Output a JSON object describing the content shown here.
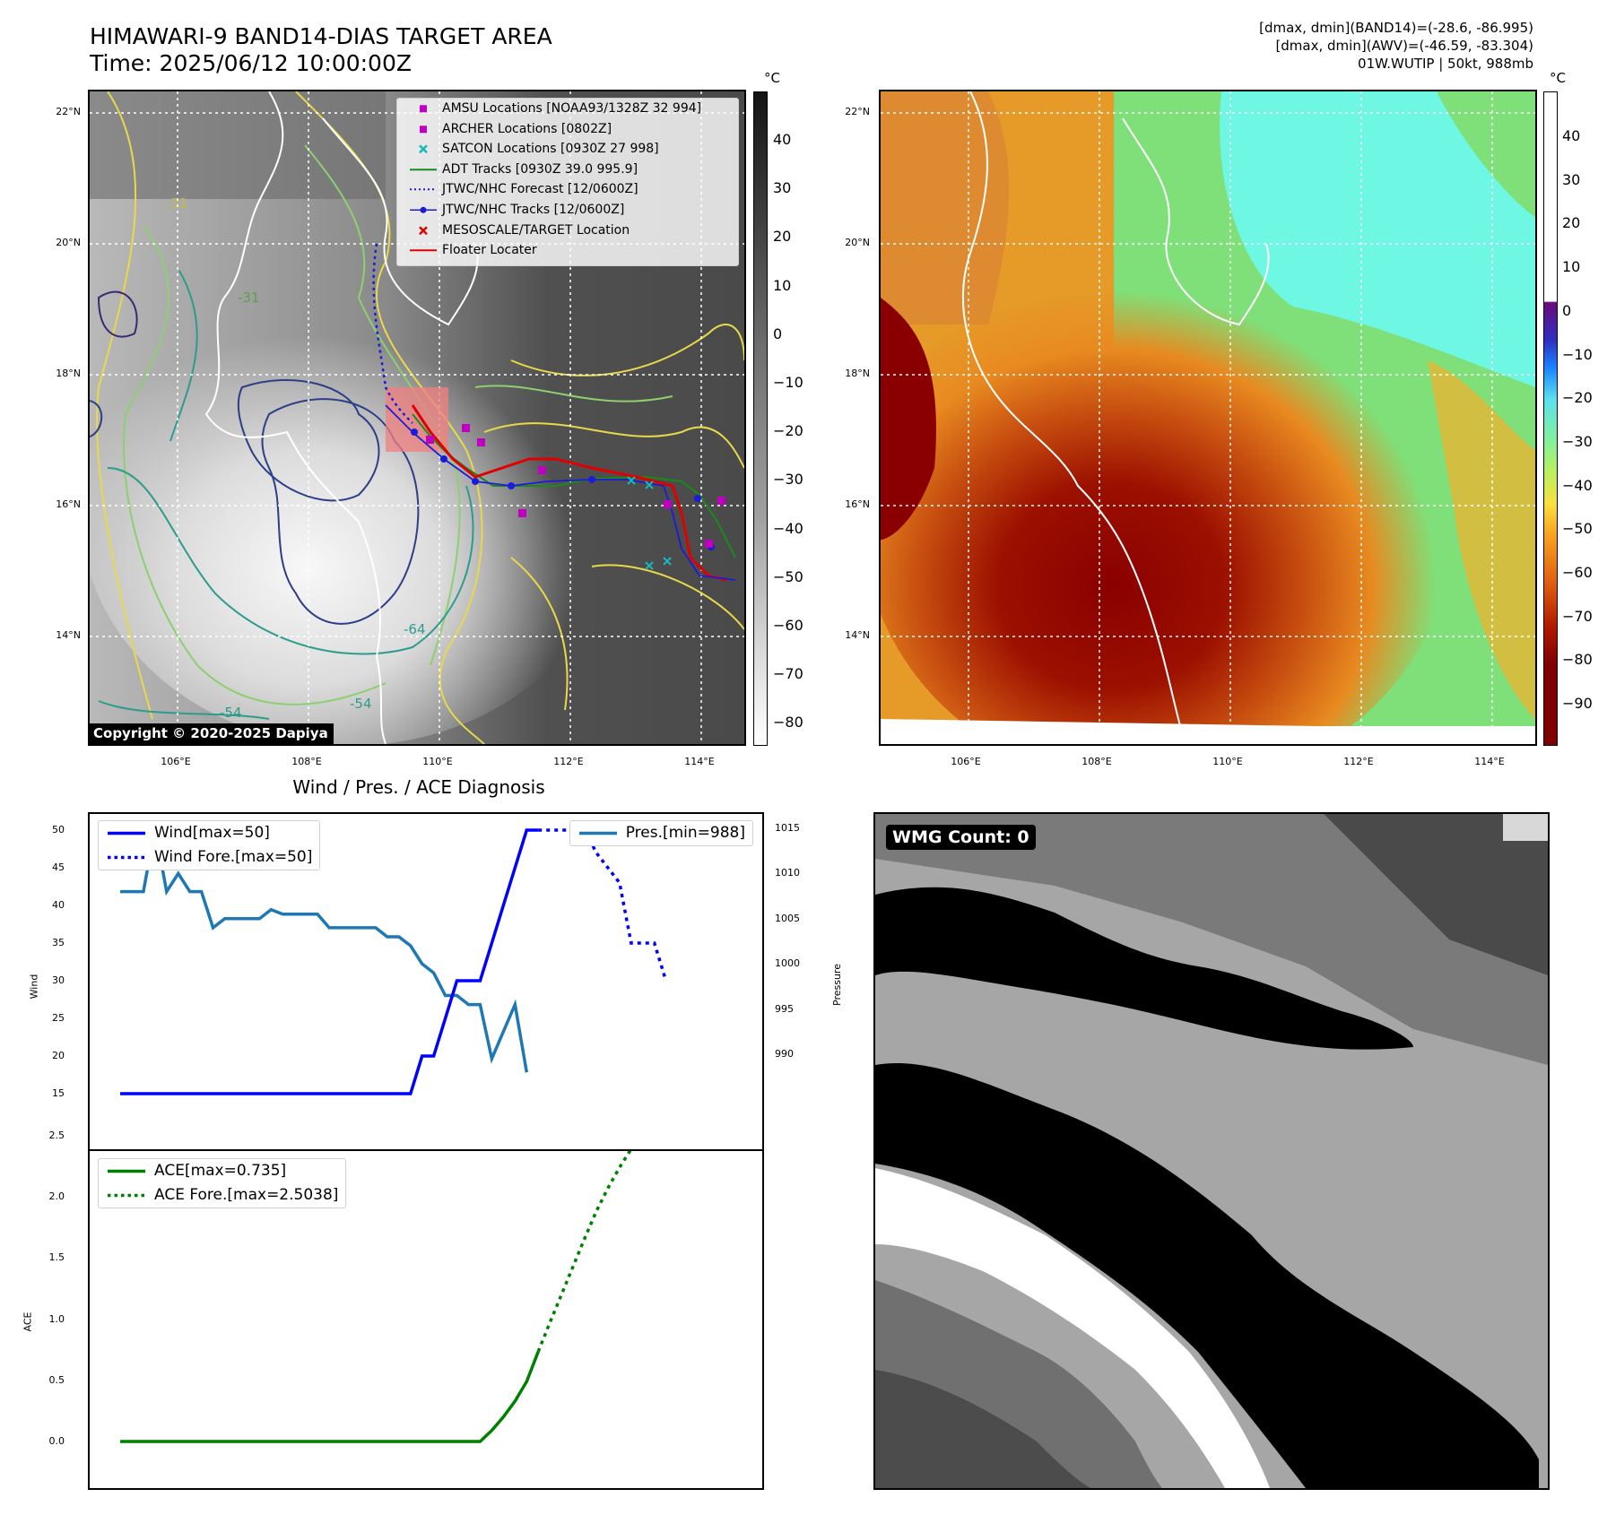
{
  "header": {
    "title_line1": "HIMAWARI-9 BAND14-DIAS TARGET AREA",
    "title_line2": "Time: 2025/06/12 10:00:00Z",
    "info_line1": "[dmax, dmin](BAND14)=(-28.6, -86.995)",
    "info_line2": "[dmax, dmin](AWV)=(-46.59, -83.304)",
    "info_line3": "01W.WUTIP | 50kt, 988mb"
  },
  "map": {
    "lat_ticks": [
      "22°N",
      "20°N",
      "18°N",
      "16°N",
      "14°N"
    ],
    "lon_ticks": [
      "106°E",
      "108°E",
      "110°E",
      "112°E",
      "114°E"
    ],
    "contour_labels": [
      "-31",
      "-31",
      "-64",
      "-54",
      "-54"
    ],
    "copyright": "Copyright © 2020-2025 Dapiya",
    "colorbar_unit": "°C"
  },
  "colorbar_ir": {
    "ticks": [
      "40",
      "30",
      "20",
      "10",
      "0",
      "−10",
      "−20",
      "−30",
      "−40",
      "−50",
      "−60",
      "−70",
      "−80"
    ]
  },
  "colorbar_awv": {
    "ticks": [
      "40",
      "30",
      "20",
      "10",
      "0",
      "−10",
      "−20",
      "−30",
      "−40",
      "−50",
      "−60",
      "−70",
      "−80",
      "−90"
    ]
  },
  "legend_ir": {
    "items": [
      {
        "label": "AMSU Locations [NOAA93/1328Z 32 994]",
        "color": "#c000c0",
        "marker": "square"
      },
      {
        "label": "ARCHER Locations [0802Z]",
        "color": "#c000c0",
        "marker": "square"
      },
      {
        "label": "SATCON Locations [0930Z 27 998]",
        "color": "#18b8b8",
        "marker": "x"
      },
      {
        "label": "ADT Tracks [0930Z 39.0 995.9]",
        "color": "#1a8a1a",
        "marker": "line"
      },
      {
        "label": "JTWC/NHC Forecast [12/0600Z]",
        "color": "#1c1cd8",
        "marker": "dotted"
      },
      {
        "label": "JTWC/NHC Tracks [12/0600Z]",
        "color": "#1c1cd8",
        "marker": "line-dot"
      },
      {
        "label": "MESOSCALE/TARGET Location",
        "color": "#e00000",
        "marker": "x"
      },
      {
        "label": "Floater Locater",
        "color": "#e00000",
        "marker": "line"
      }
    ]
  },
  "diagnosis": {
    "title": "Wind / Pres. / ACE Diagnosis",
    "wind_ylabel": "Wind",
    "pressure_ylabel": "Pressure",
    "ace_ylabel": "ACE",
    "legend_wind": "Wind[max=50]",
    "legend_wind_fore": "Wind Fore.[max=50]",
    "legend_pres": "Pres.[min=988]",
    "legend_ace": "ACE[max=0.735]",
    "legend_ace_fore": "ACE Fore.[max=2.5038]"
  },
  "wmg": {
    "label": "WMG Count: 0"
  },
  "chart_data": [
    {
      "type": "line",
      "title": "Wind / Pres. / ACE Diagnosis",
      "ylabel": "Wind",
      "ylim": [
        14,
        51
      ],
      "x": [
        0,
        1,
        2,
        3,
        4,
        5,
        6,
        7,
        8,
        9,
        10,
        11,
        12,
        13,
        14,
        15,
        16,
        17,
        18,
        19,
        20,
        21,
        22,
        23,
        24,
        25,
        26,
        27,
        28,
        29,
        30,
        31,
        32,
        33,
        34,
        35,
        36,
        37,
        38,
        39,
        40,
        41,
        42,
        43,
        44,
        45,
        46,
        47,
        48,
        49,
        50
      ],
      "yticks": [
        "50",
        "45",
        "40",
        "35",
        "30",
        "25",
        "20",
        "15"
      ],
      "series": [
        {
          "name": "Wind[max=50]",
          "color": "#0000ff",
          "style": "solid",
          "points": [
            [
              0,
              15
            ],
            [
              25,
              15
            ],
            [
              26,
              20
            ],
            [
              27,
              20
            ],
            [
              28,
              25
            ],
            [
              29,
              30
            ],
            [
              30,
              30
            ],
            [
              31,
              30
            ],
            [
              32,
              35
            ],
            [
              33,
              40
            ],
            [
              34,
              45
            ],
            [
              35,
              50
            ],
            [
              36,
              50
            ]
          ]
        },
        {
          "name": "Wind Fore.[max=50]",
          "color": "#0000ff",
          "style": "dotted",
          "points": [
            [
              36,
              50
            ],
            [
              40,
              50
            ],
            [
              41,
              47
            ],
            [
              43,
              43
            ],
            [
              44,
              35
            ],
            [
              45,
              35
            ],
            [
              46,
              35
            ],
            [
              47,
              30
            ]
          ]
        }
      ]
    },
    {
      "type": "line",
      "ylabel": "Pressure",
      "ylim": [
        988,
        1015.5
      ],
      "yticks": [
        "1015",
        "1010",
        "1005",
        "1000",
        "995",
        "990"
      ],
      "series": [
        {
          "name": "Pres.[min=988]",
          "color": "#1f77b4",
          "style": "solid",
          "points": [
            [
              0,
              1008
            ],
            [
              1,
              1008
            ],
            [
              2,
              1008
            ],
            [
              3,
              1015
            ],
            [
              4,
              1008
            ],
            [
              5,
              1010
            ],
            [
              6,
              1008
            ],
            [
              7,
              1008
            ],
            [
              8,
              1004
            ],
            [
              9,
              1005
            ],
            [
              10,
              1005
            ],
            [
              11,
              1005
            ],
            [
              12,
              1005
            ],
            [
              13,
              1006
            ],
            [
              14,
              1005.5
            ],
            [
              15,
              1005.5
            ],
            [
              16,
              1005.5
            ],
            [
              17,
              1005.5
            ],
            [
              18,
              1004
            ],
            [
              19,
              1004
            ],
            [
              20,
              1004
            ],
            [
              21,
              1004
            ],
            [
              22,
              1004
            ],
            [
              23,
              1003
            ],
            [
              24,
              1003
            ],
            [
              25,
              1002
            ],
            [
              26,
              1000
            ],
            [
              27,
              999
            ],
            [
              28,
              996.5
            ],
            [
              29,
              996.5
            ],
            [
              30,
              995.5
            ],
            [
              31,
              995.5
            ],
            [
              32,
              989.5
            ],
            [
              33,
              992.5
            ],
            [
              34,
              995.5
            ],
            [
              35,
              988
            ]
          ]
        }
      ]
    },
    {
      "type": "line",
      "ylabel": "ACE",
      "ylim": [
        -0.05,
        2.6
      ],
      "yticks": [
        "2.5",
        "2.0",
        "1.5",
        "1.0",
        "0.5",
        "0.0"
      ],
      "series": [
        {
          "name": "ACE[max=0.735]",
          "color": "#008000",
          "style": "solid",
          "points": [
            [
              0,
              0
            ],
            [
              31,
              0
            ],
            [
              32,
              0.09
            ],
            [
              33,
              0.2
            ],
            [
              34,
              0.33
            ],
            [
              35,
              0.49
            ],
            [
              36,
              0.735
            ]
          ]
        },
        {
          "name": "ACE Fore.[max=2.5038]",
          "color": "#008000",
          "style": "dotted",
          "points": [
            [
              36,
              0.735
            ],
            [
              37,
              0.97
            ],
            [
              38,
              1.2
            ],
            [
              39,
              1.43
            ],
            [
              40,
              1.66
            ],
            [
              41,
              1.88
            ],
            [
              42,
              2.07
            ],
            [
              43,
              2.24
            ],
            [
              44,
              2.39
            ],
            [
              45,
              2.5
            ],
            [
              46,
              2.5
            ],
            [
              47,
              2.5038
            ]
          ]
        }
      ]
    }
  ]
}
